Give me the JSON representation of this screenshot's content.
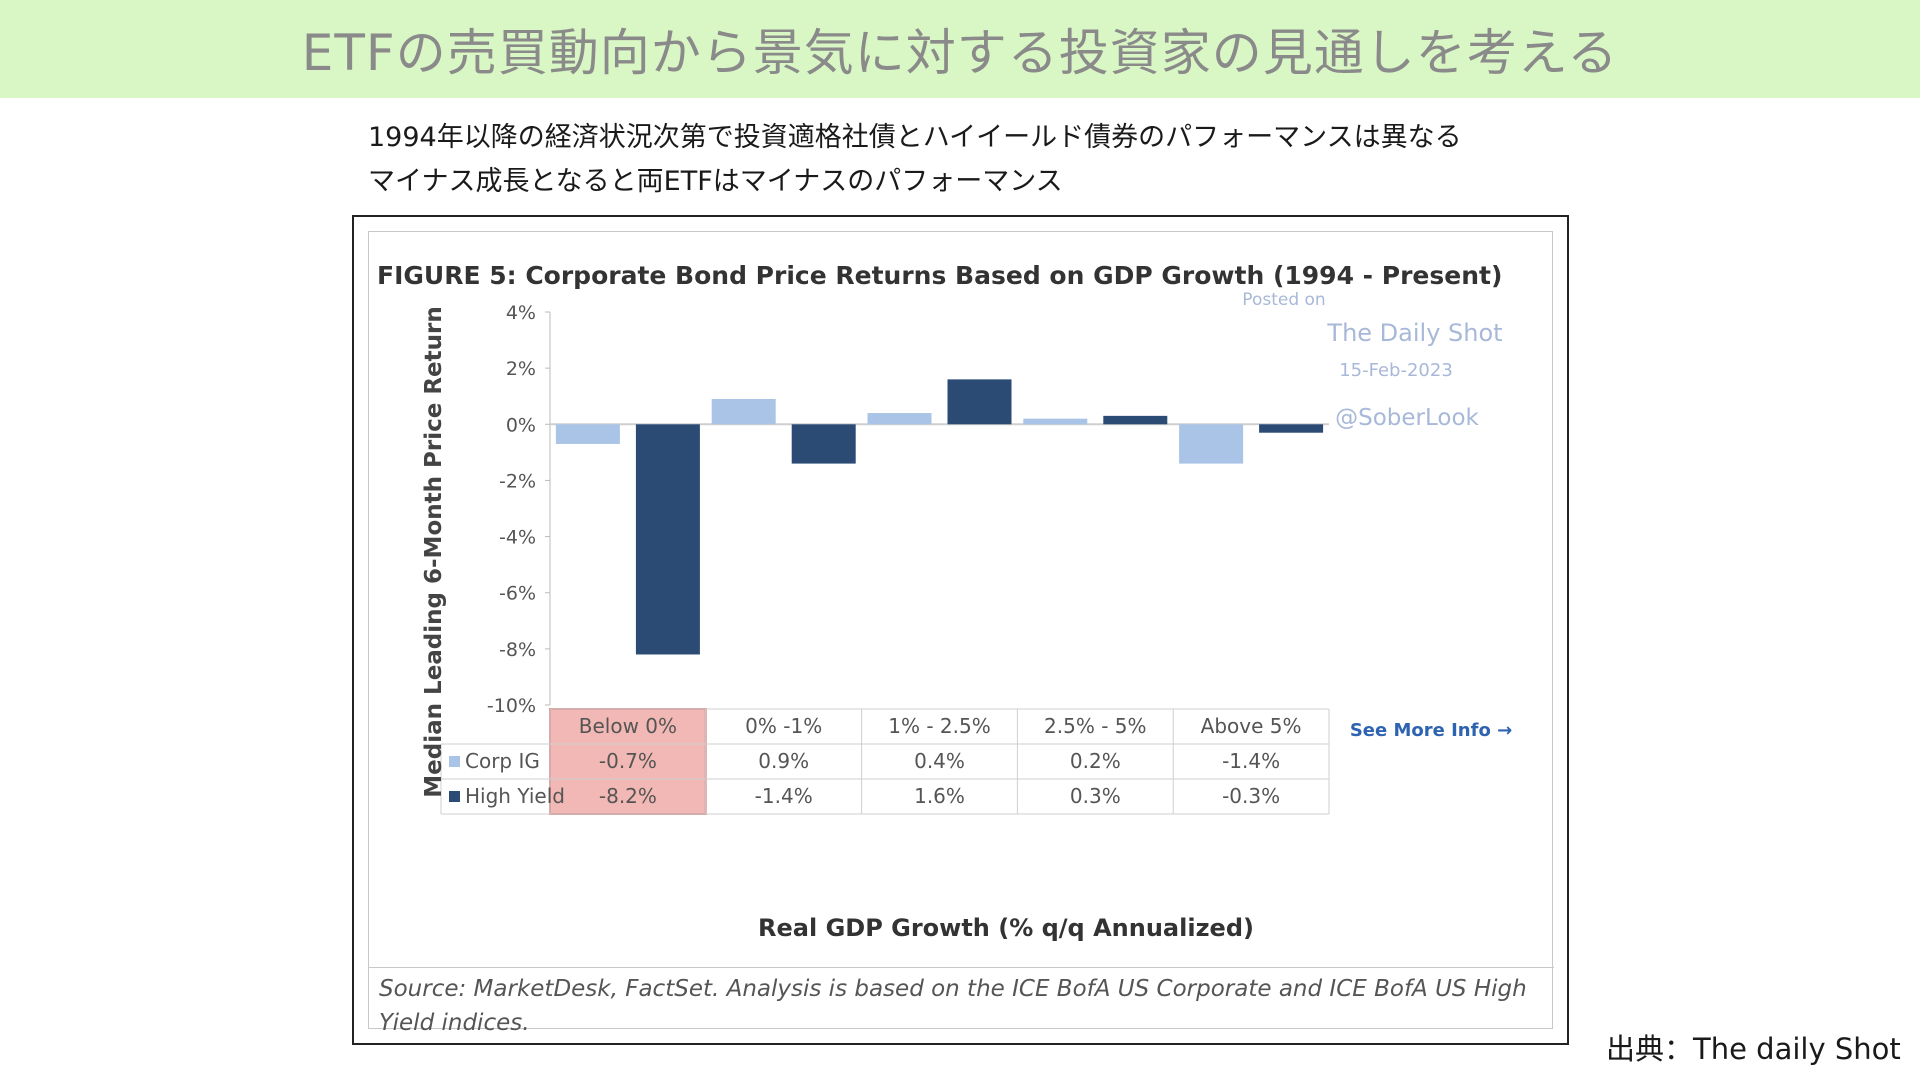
{
  "banner": {
    "title": "ETFの売買動向から景気に対する投資家の見通しを考える"
  },
  "subtitle": {
    "line1": "1994年以降の経済状況次第で投資適格社債とハイイールド債券のパフォーマンスは異なる",
    "line2": "マイナス成長となると両ETFはマイナスのパフォーマンス"
  },
  "figure": {
    "posted_on": "Posted on",
    "outlet": "The Daily Shot",
    "date": "15-Feb-2023",
    "handle": "@SoberLook",
    "see_more": "See More Info →",
    "source": "Source: MarketDesk, FactSet. Analysis is based on the ICE BofA US Corporate and ICE BofA US High Yield indices."
  },
  "credit": "出典：The daily Shot",
  "colors": {
    "corp_ig": "#a9c4e6",
    "high_yield": "#2b4a74",
    "highlight": "#f2b8b5",
    "banner_bg": "#d9f7c4"
  },
  "chart_data": {
    "type": "bar",
    "title": "FIGURE 5: Corporate Bond Price Returns Based on GDP Growth (1994 - Present)",
    "xlabel": "Real GDP Growth (% q/q Annualized)",
    "ylabel": "Median Leading 6-Month Price Return",
    "categories": [
      "Below 0%",
      "0% -1%",
      "1% - 2.5%",
      "2.5% - 5%",
      "Above 5%"
    ],
    "series": [
      {
        "name": "Corp IG",
        "values": [
          -0.7,
          0.9,
          0.4,
          0.2,
          -1.4
        ],
        "labels": [
          "-0.7%",
          "0.9%",
          "0.4%",
          "0.2%",
          "-1.4%"
        ],
        "color": "#a9c4e6"
      },
      {
        "name": "High Yield",
        "values": [
          -8.2,
          -1.4,
          1.6,
          0.3,
          -0.3
        ],
        "labels": [
          "-8.2%",
          "-1.4%",
          "1.6%",
          "0.3%",
          "-0.3%"
        ],
        "color": "#2b4a74"
      }
    ],
    "yticks": [
      "4%",
      "2%",
      "0%",
      "-2%",
      "-4%",
      "-6%",
      "-8%",
      "-10%"
    ],
    "ytick_values": [
      4,
      2,
      0,
      -2,
      -4,
      -6,
      -8,
      -10
    ],
    "ylim": [
      -10,
      4
    ],
    "highlighted_category": "Below 0%",
    "grid": false,
    "legend": "in-table"
  }
}
